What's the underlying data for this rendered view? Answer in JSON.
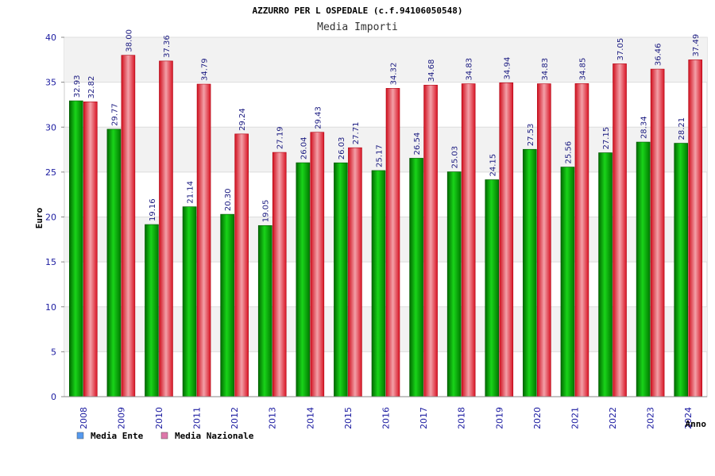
{
  "chart_data": {
    "type": "bar",
    "title": "AZZURRO PER L OSPEDALE (c.f.94106050548)",
    "subtitle": "Media Importi",
    "xlabel": "Anno",
    "ylabel": "Euro",
    "ylim": [
      0,
      40
    ],
    "yticks": [
      0,
      5,
      10,
      15,
      20,
      25,
      30,
      35,
      40
    ],
    "grid": true,
    "legend_position": "bottom-left",
    "categories": [
      "2008",
      "2009",
      "2010",
      "2011",
      "2012",
      "2013",
      "2014",
      "2015",
      "2016",
      "2017",
      "2018",
      "2019",
      "2020",
      "2021",
      "2022",
      "2023",
      "2024"
    ],
    "series": [
      {
        "name": "Media Ente",
        "color": "#00b000",
        "legend_color": "#5599ee",
        "values": [
          32.93,
          29.77,
          19.16,
          21.14,
          20.3,
          19.05,
          26.04,
          26.03,
          25.17,
          26.54,
          25.03,
          24.15,
          27.53,
          25.56,
          27.15,
          28.34,
          28.21
        ],
        "labels": [
          "32.93",
          "29.77",
          "19.16",
          "21.14",
          "20.30",
          "19.05",
          "26.04",
          "26.03",
          "25.17",
          "26.54",
          "25.03",
          "24.15",
          "27.53",
          "25.56",
          "27.15",
          "28.34",
          "28.21"
        ]
      },
      {
        "name": "Media Nazionale",
        "color": "#e8283a",
        "legend_color": "#dd77aa",
        "values": [
          32.82,
          38.0,
          37.36,
          34.79,
          29.24,
          27.19,
          29.43,
          27.71,
          34.32,
          34.68,
          34.83,
          34.94,
          34.83,
          34.85,
          37.05,
          36.46,
          37.49
        ],
        "labels": [
          "32.82",
          "38.00",
          "37.36",
          "34.79",
          "29.24",
          "27.19",
          "29.43",
          "27.71",
          "34.32",
          "34.68",
          "34.83",
          "34.94",
          "34.83",
          "34.85",
          "37.05",
          "36.46",
          "37.49"
        ]
      }
    ]
  }
}
